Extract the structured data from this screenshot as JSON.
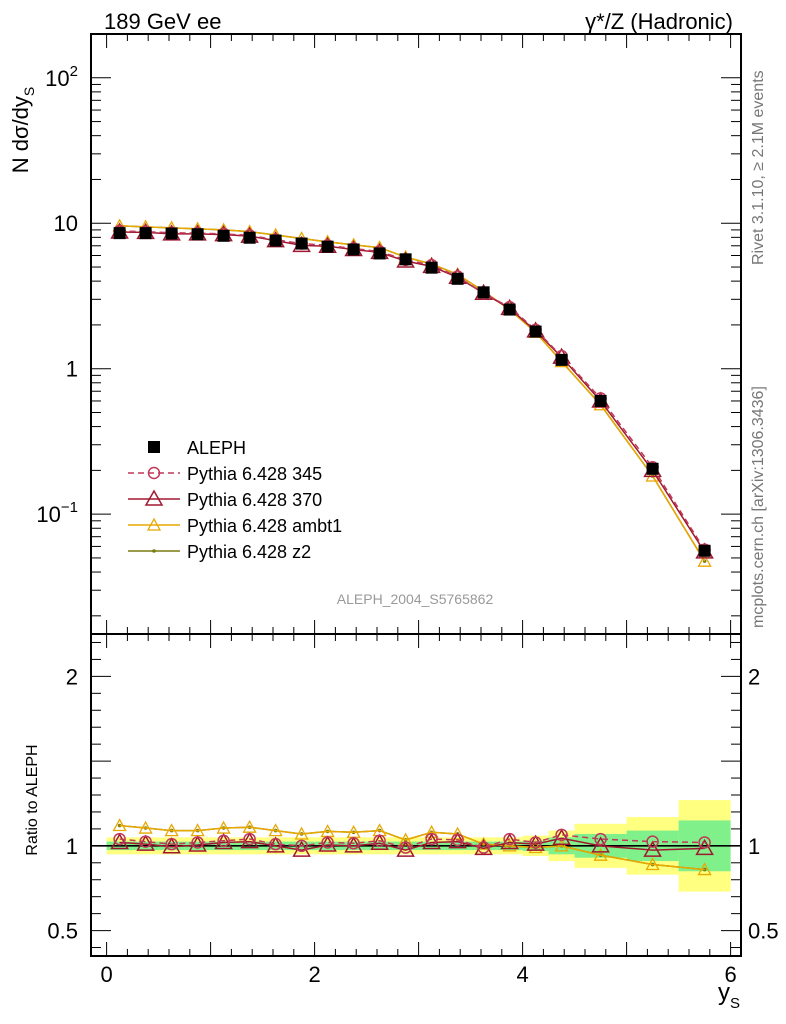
{
  "header": {
    "left_title": "189 GeV ee",
    "right_title": "γ*/Z (Hadronic)"
  },
  "side_labels": {
    "rivet": "Rivet 3.1.10, ≥ 2.1M events",
    "mcplots": "mcplots.cern.ch [arXiv:1306.3436]"
  },
  "analysis_label": "ALEPH_2004_S5765862",
  "colors": {
    "data": "#000000",
    "p345": "#c0395a",
    "p370": "#a01830",
    "ambt1": "#e8a800",
    "z2": "#7a7a10",
    "band_green": "#7ff08a",
    "band_yellow": "#ffff80"
  },
  "chart_data": [
    {
      "type": "line",
      "yscale": "log",
      "ylabel": "N dσ/dy",
      "ylabel_sub": "S",
      "xlim": [
        -0.15,
        6.1
      ],
      "ylim": [
        0.015,
        200
      ],
      "ytick_labels": [
        "10^-1",
        "1",
        "10",
        "10^2"
      ],
      "x": [
        0.125,
        0.375,
        0.625,
        0.875,
        1.125,
        1.375,
        1.625,
        1.875,
        2.125,
        2.375,
        2.625,
        2.875,
        3.125,
        3.375,
        3.625,
        3.875,
        4.125,
        4.375,
        4.75,
        5.25,
        5.75
      ],
      "series": [
        {
          "name": "ALEPH",
          "marker": "square",
          "values": [
            8.55,
            8.55,
            8.5,
            8.4,
            8.2,
            7.95,
            7.6,
            7.25,
            6.9,
            6.6,
            6.2,
            5.65,
            4.95,
            4.15,
            3.35,
            2.55,
            1.8,
            1.15,
            0.6,
            0.205,
            0.056
          ]
        },
        {
          "name": "Pythia 6.428 345",
          "marker": "circle",
          "values": [
            8.85,
            8.75,
            8.6,
            8.55,
            8.45,
            8.25,
            7.7,
            7.25,
            7.05,
            6.7,
            6.4,
            5.6,
            5.15,
            4.3,
            3.3,
            2.65,
            1.85,
            1.22,
            0.625,
            0.21,
            0.057
          ]
        },
        {
          "name": "Pythia 6.428 370",
          "marker": "triangle",
          "values": [
            8.7,
            8.65,
            8.45,
            8.45,
            8.35,
            8.15,
            7.6,
            7.05,
            6.95,
            6.6,
            6.3,
            5.5,
            5.05,
            4.25,
            3.3,
            2.6,
            1.82,
            1.2,
            0.6,
            0.2,
            0.055
          ]
        },
        {
          "name": "Pythia 6.428 ambt1",
          "marker": "triangle-small",
          "values": [
            9.6,
            9.45,
            9.3,
            9.15,
            9.0,
            8.75,
            8.3,
            7.85,
            7.45,
            7.1,
            6.8,
            5.85,
            5.25,
            4.45,
            3.4,
            2.55,
            1.78,
            1.12,
            0.565,
            0.183,
            0.0475
          ]
        },
        {
          "name": "Pythia 6.428 z2",
          "marker": "dot",
          "values": [
            9.6,
            9.45,
            9.3,
            9.15,
            9.0,
            8.75,
            8.3,
            7.85,
            7.45,
            7.1,
            6.8,
            5.85,
            5.25,
            4.45,
            3.4,
            2.55,
            1.78,
            1.12,
            0.565,
            0.183,
            0.0475
          ]
        }
      ],
      "legend_placement": "lower-left"
    },
    {
      "type": "line",
      "yscale": "linear",
      "ylabel": "Ratio to ALEPH",
      "xlabel": "y",
      "xlabel_sub": "S",
      "xlim": [
        -0.15,
        6.1
      ],
      "ylim": [
        0.35,
        2.25
      ],
      "xtick_labels": [
        "0",
        "2",
        "4",
        "6"
      ],
      "ytick_labels": [
        "0.5",
        "1",
        "2"
      ],
      "bins": [
        0,
        0.25,
        0.5,
        0.75,
        1.0,
        1.25,
        1.5,
        1.75,
        2.0,
        2.25,
        2.5,
        2.75,
        3.0,
        3.25,
        3.5,
        3.75,
        4.0,
        4.25,
        4.5,
        5.0,
        5.5,
        6.0
      ],
      "band_green_halfwidth": [
        0.025,
        0.025,
        0.025,
        0.025,
        0.025,
        0.025,
        0.025,
        0.025,
        0.025,
        0.025,
        0.025,
        0.025,
        0.025,
        0.025,
        0.025,
        0.025,
        0.03,
        0.05,
        0.07,
        0.09,
        0.15
      ],
      "band_yellow_halfwidth": [
        0.05,
        0.05,
        0.05,
        0.05,
        0.05,
        0.05,
        0.05,
        0.05,
        0.05,
        0.05,
        0.05,
        0.05,
        0.05,
        0.05,
        0.05,
        0.05,
        0.06,
        0.09,
        0.13,
        0.17,
        0.27
      ],
      "x": [
        0.125,
        0.375,
        0.625,
        0.875,
        1.125,
        1.375,
        1.625,
        1.875,
        2.125,
        2.375,
        2.625,
        2.875,
        3.125,
        3.375,
        3.625,
        3.875,
        4.125,
        4.375,
        4.75,
        5.25,
        5.75
      ],
      "series": [
        {
          "name": "Pythia 6.428 345",
          "values": [
            1.04,
            1.025,
            1.01,
            1.02,
            1.03,
            1.04,
            1.01,
            1.0,
            1.02,
            1.015,
            1.03,
            0.99,
            1.04,
            1.035,
            0.99,
            1.04,
            1.02,
            1.065,
            1.04,
            1.025,
            1.02
          ]
        },
        {
          "name": "Pythia 6.428 370",
          "values": [
            1.02,
            1.01,
            0.995,
            1.005,
            1.02,
            1.025,
            1.0,
            0.975,
            1.005,
            1.0,
            1.015,
            0.975,
            1.02,
            1.025,
            0.985,
            1.02,
            1.01,
            1.045,
            1.0,
            0.975,
            0.985
          ]
        },
        {
          "name": "Pythia 6.428 ambt1",
          "values": [
            1.12,
            1.105,
            1.09,
            1.09,
            1.105,
            1.11,
            1.09,
            1.07,
            1.085,
            1.08,
            1.09,
            1.035,
            1.08,
            1.07,
            1.01,
            1.0,
            0.99,
            1.0,
            0.945,
            0.89,
            0.86
          ]
        },
        {
          "name": "Pythia 6.428 z2",
          "values": [
            1.12,
            1.105,
            1.09,
            1.09,
            1.105,
            1.11,
            1.09,
            1.07,
            1.085,
            1.08,
            1.09,
            1.035,
            1.08,
            1.07,
            1.01,
            1.0,
            0.99,
            1.0,
            0.945,
            0.89,
            0.86
          ]
        }
      ]
    }
  ]
}
